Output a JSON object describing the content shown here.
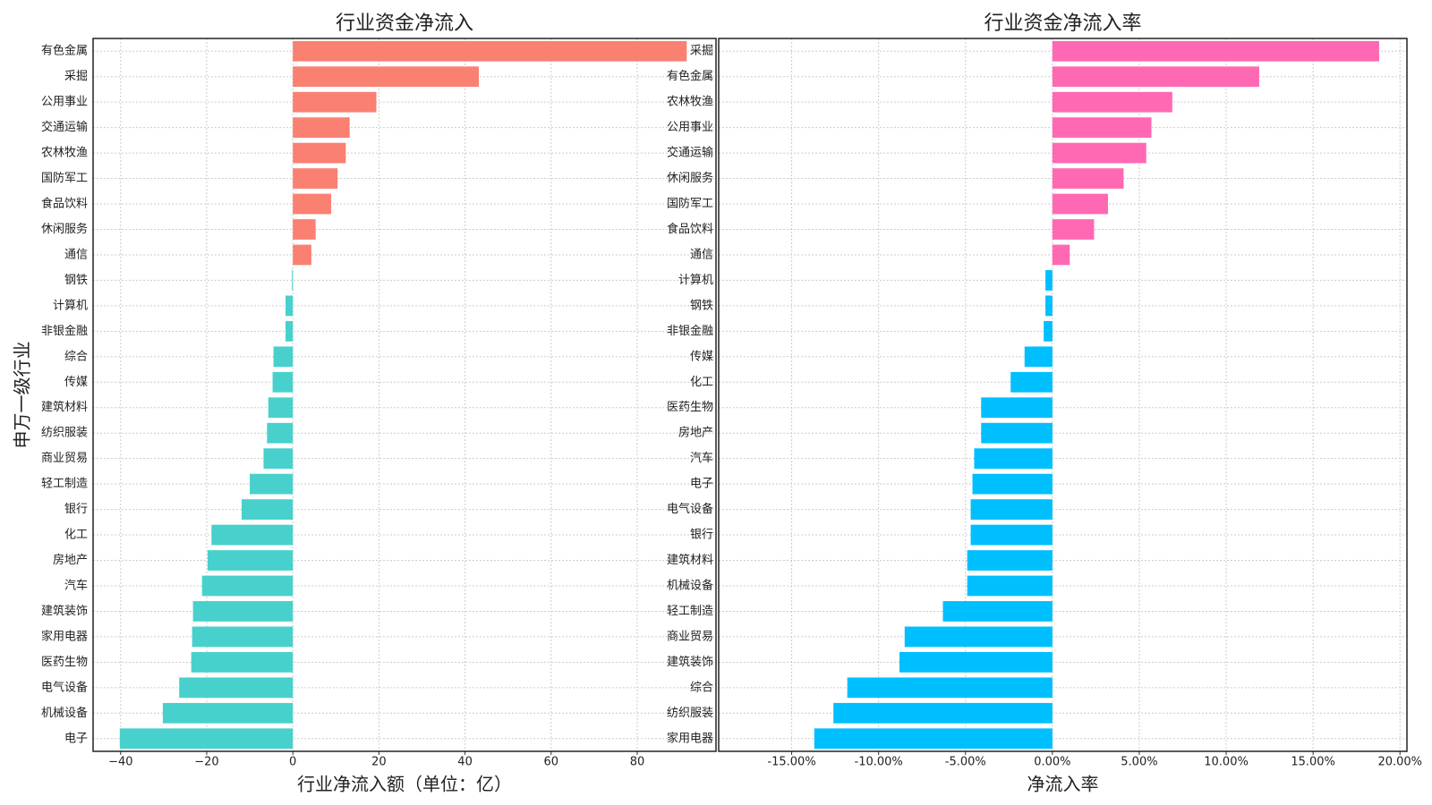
{
  "chart_data": [
    {
      "type": "barh",
      "title": "行业资金净流入",
      "xlabel": "行业净流入额（单位：亿）",
      "ylabel": "申万一级行业",
      "categories": [
        "有色金属",
        "采掘",
        "公用事业",
        "交通运输",
        "农林牧渔",
        "国防军工",
        "食品饮料",
        "休闲服务",
        "通信",
        "钢铁",
        "计算机",
        "非银金融",
        "综合",
        "传媒",
        "建筑材料",
        "纺织服装",
        "商业贸易",
        "轻工制造",
        "银行",
        "化工",
        "房地产",
        "汽车",
        "建筑装饰",
        "家用电器",
        "医药生物",
        "电气设备",
        "机械设备",
        "电子"
      ],
      "values": [
        91.5,
        43.2,
        19.4,
        13.2,
        12.3,
        10.4,
        8.9,
        5.3,
        4.3,
        -0.2,
        -1.7,
        -1.7,
        -4.5,
        -4.7,
        -5.7,
        -6.0,
        -6.8,
        -10.0,
        -11.9,
        -18.9,
        -19.8,
        -21.1,
        -23.2,
        -23.4,
        -23.6,
        -26.4,
        -30.2,
        -40.2
      ],
      "positive_color": "#fa8072",
      "negative_color": "#48d1cc",
      "xlim": [
        -46.4,
        98.3
      ],
      "xticks": [
        {
          "value": -40,
          "label": "−40"
        },
        {
          "value": -20,
          "label": "−20"
        },
        0,
        20,
        40,
        60,
        80
      ],
      "grid": true
    },
    {
      "type": "barh",
      "title": "行业资金净流入率",
      "xlabel": "净流入率",
      "categories": [
        "采掘",
        "有色金属",
        "农林牧渔",
        "公用事业",
        "交通运输",
        "休闲服务",
        "国防军工",
        "食品饮料",
        "通信",
        "计算机",
        "钢铁",
        "非银金融",
        "传媒",
        "化工",
        "医药生物",
        "房地产",
        "汽车",
        "电子",
        "电气设备",
        "银行",
        "建筑材料",
        "机械设备",
        "轻工制造",
        "商业贸易",
        "建筑装饰",
        "综合",
        "纺织服装",
        "家用电器"
      ],
      "values": [
        18.8,
        11.9,
        6.9,
        5.7,
        5.4,
        4.1,
        3.2,
        2.4,
        1.0,
        -0.4,
        -0.4,
        -0.5,
        -1.6,
        -2.4,
        -4.1,
        -4.1,
        -4.5,
        -4.6,
        -4.7,
        -4.7,
        -4.9,
        -4.9,
        -6.3,
        -8.5,
        -8.8,
        -11.8,
        -12.6,
        -13.7
      ],
      "positive_color": "#ff69b4",
      "negative_color": "#00bfff",
      "xlim": [
        -19.2,
        20.4
      ],
      "xticks": [
        {
          "value": -15,
          "label": "-15.00%"
        },
        {
          "value": -10,
          "label": "-10.00%"
        },
        {
          "value": -5,
          "label": "-5.00%"
        },
        {
          "value": 0,
          "label": "0.00%"
        },
        {
          "value": 5,
          "label": "5.00%"
        },
        {
          "value": 10,
          "label": "10.00%"
        },
        {
          "value": 15,
          "label": "15.00%"
        },
        {
          "value": 20,
          "label": "20.00%"
        }
      ],
      "grid": true
    }
  ]
}
